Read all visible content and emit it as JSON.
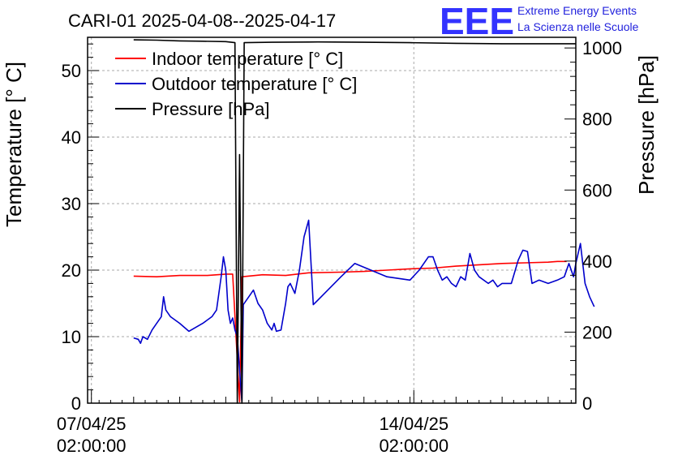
{
  "chart_data": {
    "type": "line",
    "title": "CARI-01 2025-04-08--2025-04-17",
    "ylabel_left": "Temperature [° C]",
    "ylabel_right": "Pressure [hPa]",
    "ylim_left": [
      0,
      55
    ],
    "ylim_right": [
      0,
      1030
    ],
    "yticks_left": [
      0,
      10,
      20,
      30,
      40,
      50
    ],
    "yticks_right": [
      0,
      200,
      400,
      600,
      800,
      1000
    ],
    "xlim_days": [
      7.0,
      17.6
    ],
    "xticks": [
      {
        "day": 7.083,
        "line1": "07/04/25",
        "line2": "02:00:00"
      },
      {
        "day": 14.083,
        "line1": "14/04/25",
        "line2": "02:00:00"
      }
    ],
    "grid": true,
    "legend_position": "top-left",
    "logo": {
      "mark": "EEE",
      "line1": "Extreme Energy Events",
      "line2": "La Scienza nelle Scuole"
    },
    "series": [
      {
        "name": "Indoor temperature [° C]",
        "color": "#ff0000",
        "axis": "left",
        "points": [
          [
            8.0,
            19.1
          ],
          [
            8.5,
            19.0
          ],
          [
            9.0,
            19.2
          ],
          [
            9.6,
            19.2
          ],
          [
            10.0,
            19.4
          ],
          [
            10.15,
            19.4
          ],
          [
            10.3,
            0.2
          ],
          [
            10.35,
            19.0
          ],
          [
            10.8,
            19.3
          ],
          [
            11.3,
            19.2
          ],
          [
            11.8,
            19.6
          ],
          [
            12.5,
            19.7
          ],
          [
            13.0,
            19.8
          ],
          [
            13.5,
            20.0
          ],
          [
            14.0,
            20.2
          ],
          [
            14.5,
            20.3
          ],
          [
            15.0,
            20.6
          ],
          [
            15.5,
            20.8
          ],
          [
            16.0,
            21.0
          ],
          [
            16.5,
            21.1
          ],
          [
            17.0,
            21.2
          ],
          [
            17.2,
            21.3
          ],
          [
            17.4,
            21.3
          ]
        ]
      },
      {
        "name": "Outdoor temperature [° C]",
        "color": "#0000cc",
        "axis": "left",
        "points": [
          [
            8.0,
            9.8
          ],
          [
            8.1,
            9.6
          ],
          [
            8.15,
            9.0
          ],
          [
            8.2,
            10.0
          ],
          [
            8.3,
            9.6
          ],
          [
            8.4,
            11.0
          ],
          [
            8.5,
            12.0
          ],
          [
            8.6,
            13.0
          ],
          [
            8.65,
            16.0
          ],
          [
            8.7,
            14.0
          ],
          [
            8.8,
            13.0
          ],
          [
            9.0,
            12.0
          ],
          [
            9.2,
            10.8
          ],
          [
            9.5,
            12.0
          ],
          [
            9.7,
            13.0
          ],
          [
            9.8,
            14.0
          ],
          [
            9.9,
            19.0
          ],
          [
            9.95,
            22.0
          ],
          [
            10.0,
            20.0
          ],
          [
            10.05,
            14.0
          ],
          [
            10.1,
            12.0
          ],
          [
            10.15,
            12.8
          ],
          [
            10.2,
            11.0
          ],
          [
            10.25,
            10.0
          ],
          [
            10.3,
            5.0
          ],
          [
            10.35,
            0.2
          ],
          [
            10.38,
            14.8
          ],
          [
            10.5,
            16.0
          ],
          [
            10.6,
            17.0
          ],
          [
            10.7,
            15.0
          ],
          [
            10.8,
            14.0
          ],
          [
            10.9,
            12.0
          ],
          [
            11.0,
            11.0
          ],
          [
            11.05,
            12.0
          ],
          [
            11.1,
            10.8
          ],
          [
            11.2,
            11.0
          ],
          [
            11.3,
            15.0
          ],
          [
            11.35,
            17.5
          ],
          [
            11.4,
            18.0
          ],
          [
            11.5,
            16.5
          ],
          [
            11.6,
            20.0
          ],
          [
            11.7,
            25.0
          ],
          [
            11.8,
            27.5
          ],
          [
            11.9,
            14.8
          ],
          [
            12.0,
            15.5
          ],
          [
            12.5,
            19.0
          ],
          [
            12.8,
            21.0
          ],
          [
            13.5,
            19.0
          ],
          [
            14.0,
            18.5
          ],
          [
            14.2,
            20.0
          ],
          [
            14.4,
            22.0
          ],
          [
            14.5,
            22.0
          ],
          [
            14.6,
            20.0
          ],
          [
            14.7,
            18.5
          ],
          [
            14.8,
            19.0
          ],
          [
            14.9,
            18.0
          ],
          [
            15.0,
            17.5
          ],
          [
            15.1,
            19.0
          ],
          [
            15.2,
            18.5
          ],
          [
            15.3,
            22.5
          ],
          [
            15.4,
            20.0
          ],
          [
            15.5,
            19.0
          ],
          [
            15.7,
            18.0
          ],
          [
            15.8,
            18.5
          ],
          [
            15.9,
            17.5
          ],
          [
            16.0,
            18.0
          ],
          [
            16.2,
            18.0
          ],
          [
            16.35,
            21.5
          ],
          [
            16.45,
            23.0
          ],
          [
            16.55,
            22.8
          ],
          [
            16.65,
            18.0
          ],
          [
            16.8,
            18.5
          ],
          [
            17.0,
            18.0
          ],
          [
            17.2,
            18.5
          ],
          [
            17.35,
            19.0
          ],
          [
            17.45,
            21.0
          ],
          [
            17.55,
            19.0
          ],
          [
            17.6,
            21.0
          ],
          [
            17.7,
            24.0
          ],
          [
            17.8,
            18.0
          ],
          [
            17.9,
            16.0
          ],
          [
            18.0,
            14.5
          ]
        ]
      },
      {
        "name": "Pressure [hPa]",
        "color": "#000000",
        "axis": "right",
        "points": [
          [
            8.0,
            1023
          ],
          [
            8.5,
            1022
          ],
          [
            9.0,
            1020
          ],
          [
            9.5,
            1019
          ],
          [
            10.0,
            1018
          ],
          [
            10.2,
            1015
          ],
          [
            10.25,
            0
          ],
          [
            10.3,
            700
          ],
          [
            10.35,
            0
          ],
          [
            10.4,
            1015
          ],
          [
            11.0,
            1016
          ],
          [
            12.0,
            1017
          ],
          [
            13.0,
            1016
          ],
          [
            14.0,
            1015
          ],
          [
            15.0,
            1013
          ],
          [
            16.0,
            1012
          ],
          [
            17.0,
            1012
          ],
          [
            17.6,
            1012
          ]
        ]
      }
    ]
  }
}
